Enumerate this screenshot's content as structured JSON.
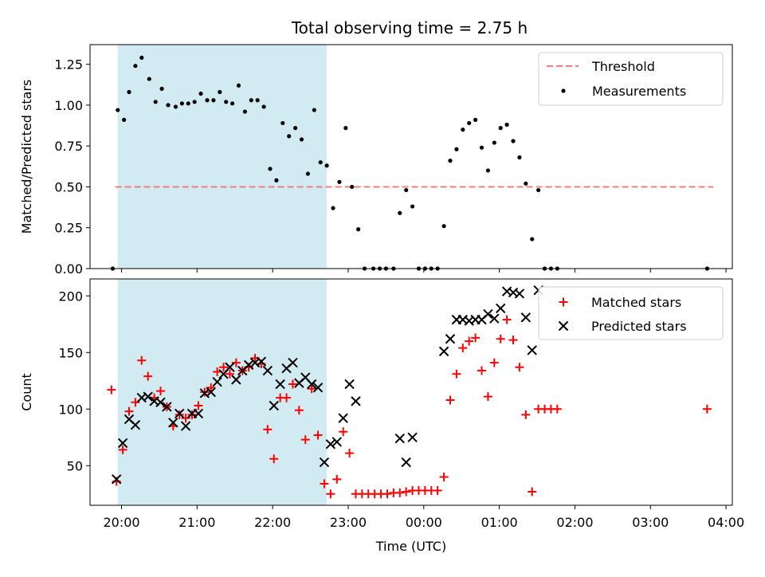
{
  "chart_data": [
    {
      "type": "scatter",
      "title": "Total observing time = 2.75 h",
      "ylabel": "Matched/Predicted stars",
      "xlim": [
        "19:35",
        "04:05"
      ],
      "ylim": [
        0,
        1.37
      ],
      "y_ticks": [
        "0.00",
        "0.25",
        "0.50",
        "0.75",
        "1.00",
        "1.25"
      ],
      "x_ticks_shown": false,
      "grid": false,
      "legend_position": "top-right",
      "shaded_interval": {
        "start": "19:57",
        "end": "22:43",
        "color": "#add8e6"
      },
      "threshold": {
        "name": "Threshold",
        "value": 0.5,
        "x_start": "19:55",
        "x_end": "03:50",
        "color": "#f08080",
        "style": "dashed"
      },
      "series": [
        {
          "name": "Measurements",
          "color": "#000000",
          "marker": "dot",
          "points": [
            [
              "19:53",
              0.0
            ],
            [
              "19:57",
              0.97
            ],
            [
              "20:02",
              0.91
            ],
            [
              "20:06",
              1.08
            ],
            [
              "20:11",
              1.24
            ],
            [
              "20:16",
              1.29
            ],
            [
              "20:22",
              1.16
            ],
            [
              "20:27",
              1.02
            ],
            [
              "20:32",
              1.1
            ],
            [
              "20:37",
              1.0
            ],
            [
              "20:43",
              0.99
            ],
            [
              "20:48",
              1.01
            ],
            [
              "20:53",
              1.01
            ],
            [
              "20:58",
              1.02
            ],
            [
              "21:03",
              1.07
            ],
            [
              "21:08",
              1.03
            ],
            [
              "21:13",
              1.03
            ],
            [
              "21:18",
              1.08
            ],
            [
              "21:23",
              1.02
            ],
            [
              "21:28",
              1.01
            ],
            [
              "21:33",
              1.12
            ],
            [
              "21:38",
              0.96
            ],
            [
              "21:43",
              1.03
            ],
            [
              "21:48",
              1.03
            ],
            [
              "21:53",
              0.99
            ],
            [
              "21:58",
              0.61
            ],
            [
              "22:03",
              0.54
            ],
            [
              "22:08",
              0.89
            ],
            [
              "22:13",
              0.81
            ],
            [
              "22:18",
              0.86
            ],
            [
              "22:23",
              0.79
            ],
            [
              "22:28",
              0.58
            ],
            [
              "22:33",
              0.97
            ],
            [
              "22:38",
              0.65
            ],
            [
              "22:43",
              0.63
            ],
            [
              "22:48",
              0.37
            ],
            [
              "22:53",
              0.53
            ],
            [
              "22:58",
              0.86
            ],
            [
              "23:03",
              0.5
            ],
            [
              "23:08",
              0.24
            ],
            [
              "23:13",
              0.0
            ],
            [
              "23:20",
              0.0
            ],
            [
              "23:25",
              0.0
            ],
            [
              "23:30",
              0.0
            ],
            [
              "23:36",
              0.0
            ],
            [
              "23:41",
              0.34
            ],
            [
              "23:46",
              0.48
            ],
            [
              "23:51",
              0.38
            ],
            [
              "23:56",
              0.0
            ],
            [
              "00:01",
              0.0
            ],
            [
              "00:06",
              0.0
            ],
            [
              "00:11",
              0.0
            ],
            [
              "00:16",
              0.26
            ],
            [
              "00:21",
              0.66
            ],
            [
              "00:26",
              0.73
            ],
            [
              "00:31",
              0.85
            ],
            [
              "00:36",
              0.89
            ],
            [
              "00:41",
              0.91
            ],
            [
              "00:46",
              0.74
            ],
            [
              "00:51",
              0.6
            ],
            [
              "00:56",
              0.77
            ],
            [
              "01:01",
              0.86
            ],
            [
              "01:06",
              0.88
            ],
            [
              "01:11",
              0.78
            ],
            [
              "01:16",
              0.68
            ],
            [
              "01:21",
              0.52
            ],
            [
              "01:26",
              0.18
            ],
            [
              "01:31",
              0.48
            ],
            [
              "01:36",
              0.0
            ],
            [
              "01:41",
              0.0
            ],
            [
              "01:46",
              0.0
            ],
            [
              "03:45",
              0.0
            ]
          ]
        }
      ]
    },
    {
      "type": "scatter",
      "xlabel": "Time (UTC)",
      "ylabel": "Count",
      "xlim": [
        "19:35",
        "04:05"
      ],
      "ylim": [
        15,
        215
      ],
      "x_ticks": [
        "20:00",
        "21:00",
        "22:00",
        "23:00",
        "00:00",
        "01:00",
        "02:00",
        "03:00",
        "04:00"
      ],
      "y_ticks": [
        50,
        100,
        150,
        200
      ],
      "grid": false,
      "legend_position": "top-right",
      "shaded_interval": {
        "start": "19:57",
        "end": "22:43",
        "color": "#add8e6"
      },
      "series": [
        {
          "name": "Matched stars",
          "color": "#ff0000",
          "marker": "plus",
          "points": [
            [
              "19:52",
              117
            ],
            [
              "19:56",
              36
            ],
            [
              "20:01",
              64
            ],
            [
              "20:06",
              98
            ],
            [
              "20:11",
              106
            ],
            [
              "20:16",
              143
            ],
            [
              "20:21",
              129
            ],
            [
              "20:26",
              110
            ],
            [
              "20:31",
              116
            ],
            [
              "20:36",
              102
            ],
            [
              "20:41",
              85
            ],
            [
              "20:46",
              95
            ],
            [
              "20:51",
              92
            ],
            [
              "20:56",
              95
            ],
            [
              "21:01",
              103
            ],
            [
              "21:06",
              115
            ],
            [
              "21:11",
              119
            ],
            [
              "21:16",
              133
            ],
            [
              "21:21",
              137
            ],
            [
              "21:26",
              131
            ],
            [
              "21:31",
              141
            ],
            [
              "21:36",
              134
            ],
            [
              "21:41",
              137
            ],
            [
              "21:46",
              145
            ],
            [
              "21:51",
              140
            ],
            [
              "21:56",
              82
            ],
            [
              "22:01",
              56
            ],
            [
              "22:06",
              110
            ],
            [
              "22:11",
              110
            ],
            [
              "22:16",
              122
            ],
            [
              "22:21",
              99
            ],
            [
              "22:26",
              73
            ],
            [
              "22:31",
              118
            ],
            [
              "22:36",
              77
            ],
            [
              "22:41",
              34
            ],
            [
              "22:46",
              25
            ],
            [
              "22:51",
              38
            ],
            [
              "22:56",
              80
            ],
            [
              "23:01",
              61
            ],
            [
              "23:06",
              25
            ],
            [
              "23:11",
              25
            ],
            [
              "23:16",
              25
            ],
            [
              "23:21",
              25
            ],
            [
              "23:26",
              25
            ],
            [
              "23:31",
              25
            ],
            [
              "23:36",
              26
            ],
            [
              "23:41",
              26
            ],
            [
              "23:46",
              27
            ],
            [
              "23:51",
              28
            ],
            [
              "23:56",
              28
            ],
            [
              "00:01",
              28
            ],
            [
              "00:06",
              28
            ],
            [
              "00:11",
              28
            ],
            [
              "00:16",
              40
            ],
            [
              "00:21",
              108
            ],
            [
              "00:26",
              131
            ],
            [
              "00:31",
              154
            ],
            [
              "00:36",
              160
            ],
            [
              "00:41",
              163
            ],
            [
              "00:46",
              134
            ],
            [
              "00:51",
              111
            ],
            [
              "00:56",
              141
            ],
            [
              "01:01",
              162
            ],
            [
              "01:06",
              179
            ],
            [
              "01:11",
              161
            ],
            [
              "01:16",
              137
            ],
            [
              "01:21",
              95
            ],
            [
              "01:26",
              27
            ],
            [
              "01:31",
              100
            ],
            [
              "01:36",
              100
            ],
            [
              "01:41",
              100
            ],
            [
              "01:46",
              100
            ],
            [
              "03:45",
              100
            ]
          ]
        },
        {
          "name": "Predicted stars",
          "color": "#000000",
          "marker": "x",
          "points": [
            [
              "19:56",
              38
            ],
            [
              "20:01",
              70
            ],
            [
              "20:06",
              91
            ],
            [
              "20:11",
              86
            ],
            [
              "20:16",
              110
            ],
            [
              "20:21",
              111
            ],
            [
              "20:26",
              107
            ],
            [
              "20:31",
              106
            ],
            [
              "20:36",
              102
            ],
            [
              "20:41",
              88
            ],
            [
              "20:46",
              96
            ],
            [
              "20:51",
              85
            ],
            [
              "20:56",
              96
            ],
            [
              "21:01",
              96
            ],
            [
              "21:06",
              114
            ],
            [
              "21:11",
              115
            ],
            [
              "21:16",
              124
            ],
            [
              "21:21",
              131
            ],
            [
              "21:26",
              137
            ],
            [
              "21:31",
              126
            ],
            [
              "21:36",
              134
            ],
            [
              "21:41",
              139
            ],
            [
              "21:46",
              141
            ],
            [
              "21:51",
              142
            ],
            [
              "21:56",
              134
            ],
            [
              "22:01",
              103
            ],
            [
              "22:06",
              122
            ],
            [
              "22:11",
              136
            ],
            [
              "22:16",
              141
            ],
            [
              "22:21",
              123
            ],
            [
              "22:26",
              128
            ],
            [
              "22:31",
              122
            ],
            [
              "22:36",
              119
            ],
            [
              "22:41",
              53
            ],
            [
              "22:46",
              69
            ],
            [
              "22:51",
              71
            ],
            [
              "22:56",
              92
            ],
            [
              "23:01",
              122
            ],
            [
              "23:06",
              107
            ],
            [
              "23:41",
              74
            ],
            [
              "23:46",
              53
            ],
            [
              "23:51",
              75
            ],
            [
              "00:16",
              151
            ],
            [
              "00:21",
              162
            ],
            [
              "00:26",
              179
            ],
            [
              "00:31",
              179
            ],
            [
              "00:36",
              178
            ],
            [
              "00:41",
              179
            ],
            [
              "00:46",
              179
            ],
            [
              "00:51",
              184
            ],
            [
              "00:56",
              180
            ],
            [
              "01:01",
              189
            ],
            [
              "01:06",
              204
            ],
            [
              "01:11",
              203
            ],
            [
              "01:16",
              202
            ],
            [
              "01:21",
              181
            ],
            [
              "01:26",
              152
            ],
            [
              "01:31",
              205
            ]
          ]
        }
      ]
    }
  ]
}
